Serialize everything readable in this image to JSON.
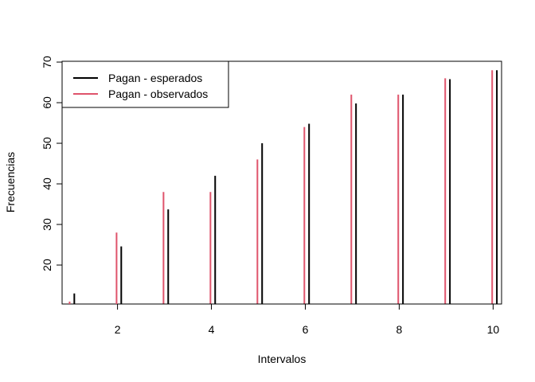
{
  "chart_data": {
    "type": "bar",
    "xlabel": "Intervalos",
    "ylabel": "Frecuencias",
    "xlim": [
      0.82,
      10.18
    ],
    "ylim": [
      10.4,
      70.2
    ],
    "x_ticks": [
      2,
      4,
      6,
      8,
      10
    ],
    "y_ticks": [
      20,
      30,
      40,
      50,
      60,
      70
    ],
    "baseline": 10.4,
    "legend_position": "top-left",
    "grid": false,
    "x": [
      1,
      2,
      3,
      4,
      5,
      6,
      7,
      8,
      9,
      10
    ],
    "series": [
      {
        "name": "Pagan - esperados",
        "color": "#000000",
        "offset": 0.08,
        "values": [
          13,
          24.6,
          33.7,
          42,
          50,
          54.8,
          59.8,
          62,
          65.8,
          68
        ]
      },
      {
        "name": "Pagan - observados",
        "color": "#DF536B",
        "offset": -0.02,
        "values": [
          11,
          28,
          38,
          38,
          46,
          54,
          62,
          62,
          66,
          68
        ]
      }
    ]
  }
}
